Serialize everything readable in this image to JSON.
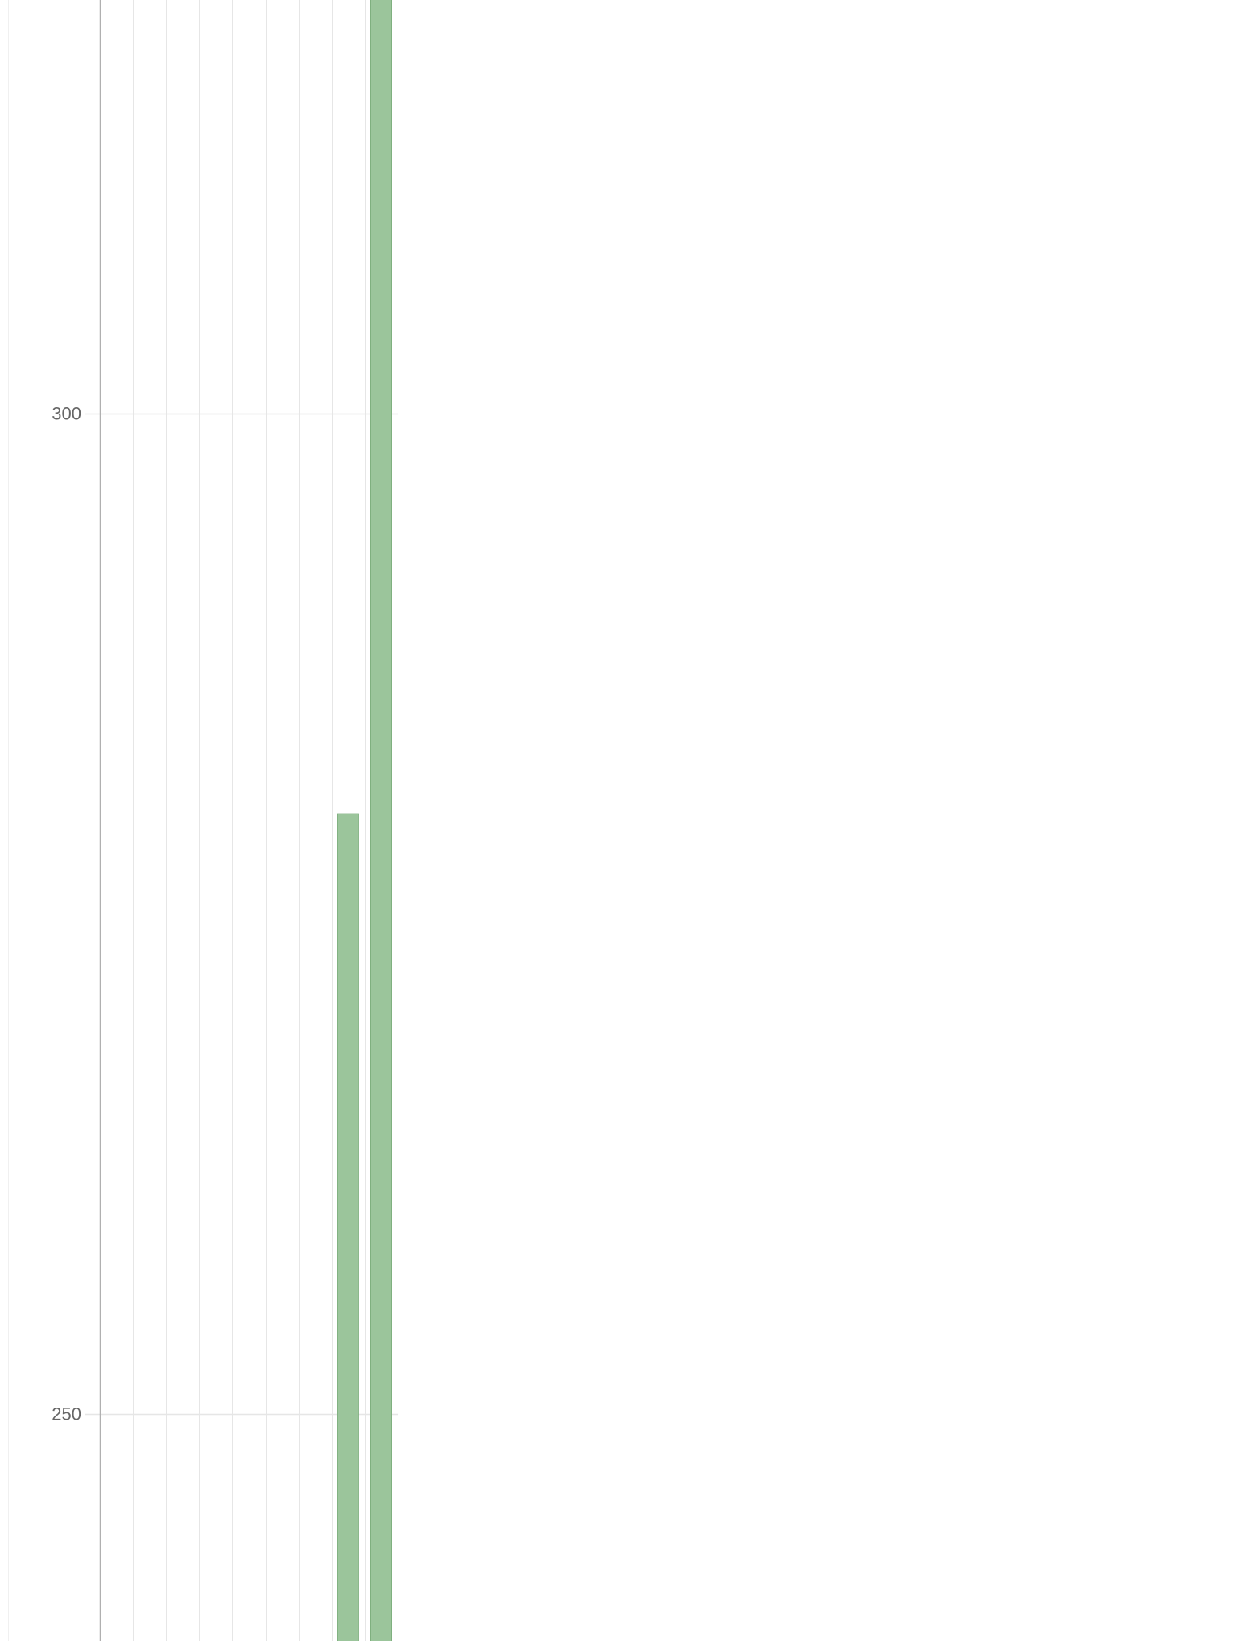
{
  "chart_data": {
    "type": "bar",
    "title": "",
    "xlabel": "",
    "ylabel": "",
    "categories": [
      "",
      "",
      "",
      "",
      "",
      "",
      "",
      "",
      ""
    ],
    "values": [
      null,
      null,
      null,
      null,
      null,
      null,
      null,
      280,
      338
    ],
    "ylim": [
      218,
      341
    ],
    "y_ticks": [
      250,
      300
    ],
    "y_tick_labels": [
      "250",
      "300"
    ],
    "grid": true,
    "legend": "none",
    "colors": {
      "bar_fill": "#9bc59b",
      "bar_stroke": "#7fb07f",
      "axis": "#b0b0b0",
      "grid": "#e6e6e6",
      "tick_text": "#666666",
      "background": "#ffffff"
    }
  }
}
